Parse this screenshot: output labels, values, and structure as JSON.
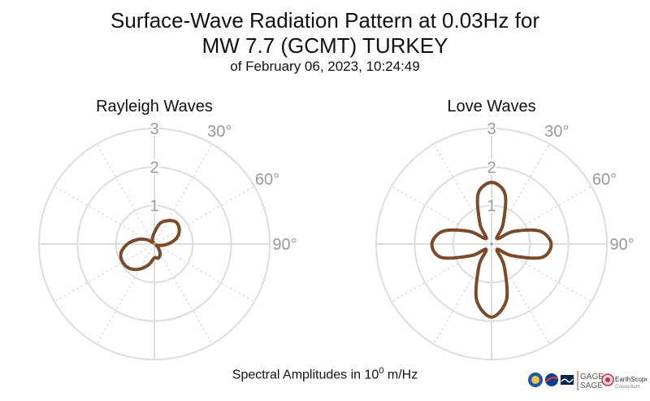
{
  "title": {
    "line1": "Surface-Wave Radiation Pattern at 0.03Hz for",
    "line2": "MW 7.7 (GCMT) TURKEY",
    "line3": "of February 06, 2023, 10:24:49"
  },
  "footer": {
    "prefix": "Spectral Amplitudes in 10",
    "exponent": "0",
    "suffix": " m/Hz"
  },
  "logos": {
    "gage": "GAGE",
    "sage": "SAGE",
    "earthscope": "EarthScope",
    "consortium": "Consortium"
  },
  "colors": {
    "pattern": "#7b4a2a",
    "grid": "#dddddd",
    "tick_text": "#999999"
  },
  "chart_data": [
    {
      "type": "polar-line",
      "title": "Rayleigh Waves",
      "radial_ticks": [
        "1",
        "2",
        "3"
      ],
      "rmax": 3,
      "angular_ticks": [
        "30°",
        "60°",
        "90°"
      ],
      "direction": "clockwise",
      "zero_location": "top",
      "grid": true,
      "series": [
        {
          "theta_deg": [
            0,
            15,
            30,
            45,
            60,
            75,
            90,
            105,
            120,
            135,
            150,
            165,
            180,
            195,
            210,
            225,
            240,
            255,
            270,
            285,
            300,
            315,
            330,
            345
          ],
          "r": [
            0.3,
            0.55,
            0.7,
            0.8,
            0.75,
            0.6,
            0.35,
            0.15,
            0.05,
            0.15,
            0.3,
            0.38,
            0.36,
            0.55,
            0.75,
            0.9,
            0.95,
            0.9,
            0.7,
            0.45,
            0.22,
            0.05,
            0.1,
            0.18
          ]
        }
      ]
    },
    {
      "type": "polar-line",
      "title": "Love Waves",
      "radial_ticks": [
        "1",
        "2",
        "3"
      ],
      "rmax": 3,
      "angular_ticks": [
        "30°",
        "60°",
        "90°"
      ],
      "direction": "clockwise",
      "zero_location": "top",
      "grid": true,
      "series": [
        {
          "theta_deg": [
            0,
            15,
            30,
            45,
            60,
            75,
            90,
            105,
            120,
            135,
            150,
            165,
            180,
            195,
            210,
            225,
            240,
            255,
            270,
            285,
            300,
            315,
            330,
            345
          ],
          "r": [
            1.6,
            1.35,
            0.6,
            0.2,
            0.65,
            1.3,
            1.55,
            1.35,
            0.6,
            0.2,
            0.65,
            1.5,
            1.9,
            1.5,
            0.65,
            0.2,
            0.6,
            1.35,
            1.55,
            1.3,
            0.65,
            0.2,
            0.6,
            1.35
          ]
        }
      ]
    }
  ]
}
